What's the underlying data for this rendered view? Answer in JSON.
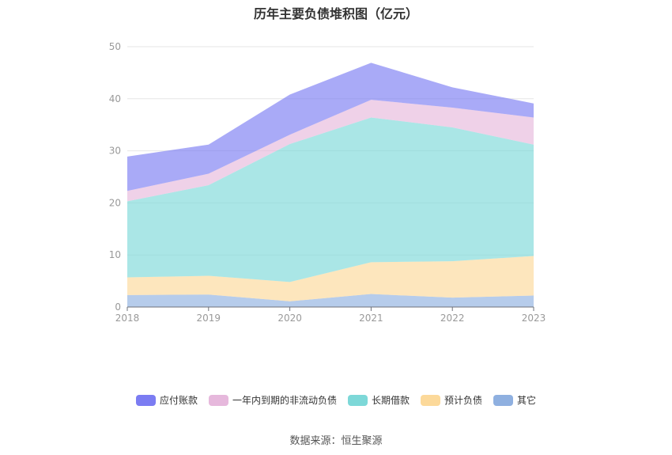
{
  "title": "历年主要负债堆积图（亿元）",
  "source": "数据来源：恒生聚源",
  "chart_data": {
    "type": "area",
    "stacked": true,
    "title": "历年主要负债堆积图（亿元）",
    "categories": [
      "2018",
      "2019",
      "2020",
      "2021",
      "2022",
      "2023"
    ],
    "ylim": [
      0,
      50
    ],
    "yticks": [
      0,
      10,
      20,
      30,
      40,
      50
    ],
    "grid": true,
    "legend_position": "bottom",
    "series": [
      {
        "name": "其它",
        "color": "#8fb0e0",
        "values": [
          2.3,
          2.4,
          1.1,
          2.5,
          1.8,
          2.2
        ]
      },
      {
        "name": "预计负债",
        "color": "#fcd99a",
        "values": [
          3.4,
          3.6,
          3.7,
          6.1,
          7.0,
          7.6
        ]
      },
      {
        "name": "长期借款",
        "color": "#7dd8d8",
        "values": [
          14.6,
          17.4,
          26.5,
          27.8,
          25.7,
          21.4
        ]
      },
      {
        "name": "一年内到期的非流动负债",
        "color": "#e6b8dc",
        "values": [
          2.0,
          2.2,
          1.8,
          3.4,
          3.8,
          5.2
        ]
      },
      {
        "name": "应付账款",
        "color": "#7b7cf2",
        "values": [
          6.6,
          5.6,
          7.7,
          7.1,
          3.9,
          2.7
        ]
      }
    ]
  }
}
